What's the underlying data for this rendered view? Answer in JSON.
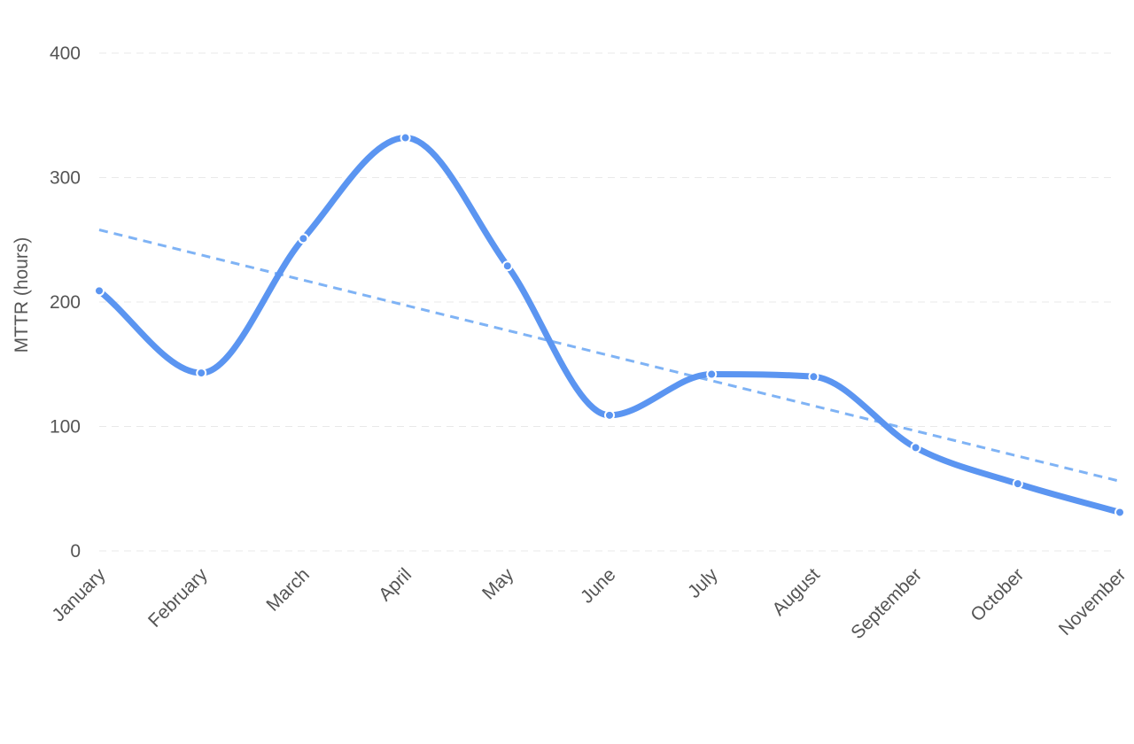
{
  "chart_data": {
    "type": "line",
    "title": "",
    "xlabel": "",
    "ylabel": "MTTR (hours)",
    "ylim": [
      0,
      400
    ],
    "y_ticks": [
      0,
      100,
      200,
      300,
      400
    ],
    "grid": true,
    "categories": [
      "January",
      "February",
      "March",
      "April",
      "May",
      "June",
      "July",
      "August",
      "September",
      "October",
      "November"
    ],
    "series": [
      {
        "values": [
          209,
          143,
          251,
          332,
          229,
          109,
          142,
          140,
          83,
          54,
          31
        ],
        "color": "#5b95f1",
        "smooth": true
      }
    ],
    "trendline": {
      "start": 258,
      "end": 56,
      "color": "#7fb3f5",
      "style": "dashed"
    }
  }
}
